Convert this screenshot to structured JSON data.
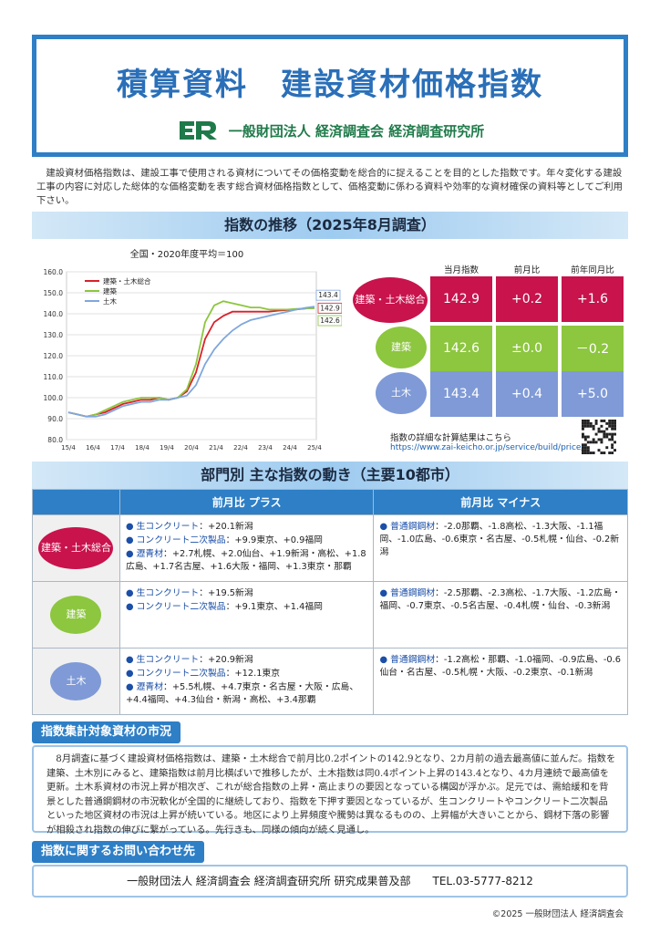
{
  "header": {
    "title": "積算資料　建設資材価格指数",
    "org": "一般財団法人 経済調査会 経済調査研究所"
  },
  "intro": "建設資材価格指数は、建設工事で使用される資材についてその価格変動を総合的に捉えることを目的とした指数です。年々変化する建設工事の内容に対応した総体的な価格変動を表す総合資材価格指数として、価格変動に係わる資料や効率的な資材確保の資料等としてご利用下さい。",
  "section1": {
    "title": "指数の推移（2025年8月調査）"
  },
  "chart_data": {
    "type": "line",
    "subtitle": "全国・2020年度平均＝100",
    "x_ticks": [
      "15/4",
      "16/4",
      "17/4",
      "18/4",
      "19/4",
      "20/4",
      "21/4",
      "22/4",
      "23/4",
      "24/4",
      "25/4"
    ],
    "ylim": [
      80,
      160
    ],
    "y_ticks": [
      "80.0",
      "90.0",
      "100.0",
      "110.0",
      "120.0",
      "130.0",
      "140.0",
      "150.0",
      "160.0"
    ],
    "legend_position": "top-left",
    "grid": true,
    "series": [
      {
        "name": "建築・土木総合",
        "color": "#d8222a",
        "values": [
          93,
          92,
          91,
          92,
          93,
          95,
          97,
          98,
          99,
          99,
          100,
          99,
          100,
          103,
          112,
          128,
          136,
          139,
          141,
          141,
          141,
          141,
          141,
          141.5,
          141.8,
          142.1,
          142.5,
          142.9
        ],
        "end_label": "142.9"
      },
      {
        "name": "建築",
        "color": "#8cc63e",
        "values": [
          93,
          92,
          91,
          92,
          94,
          96,
          98,
          99,
          100,
          100,
          100,
          99,
          100,
          104,
          116,
          136,
          144,
          146,
          145,
          144,
          143,
          143,
          142,
          142,
          142,
          142.3,
          142.5,
          142.6
        ],
        "end_label": "142.6"
      },
      {
        "name": "土木",
        "color": "#7fa7dc",
        "values": [
          93,
          92,
          91,
          91,
          92,
          94,
          96,
          97,
          98,
          98,
          99,
          99,
          100,
          101,
          106,
          116,
          123,
          128,
          132,
          135,
          137,
          138,
          139,
          140,
          141,
          142,
          142.8,
          143.4
        ],
        "end_label": "143.4"
      }
    ]
  },
  "index_table": {
    "headers": [
      "当月指数",
      "前月比",
      "前年同月比"
    ],
    "rows": [
      {
        "label": "建築・土木総合",
        "color": "#c8134d",
        "values": [
          "142.9",
          "+0.2",
          "+1.6"
        ]
      },
      {
        "label": "建築",
        "color": "#8dc63f",
        "values": [
          "142.6",
          "±0.0",
          "－0.2"
        ]
      },
      {
        "label": "土木",
        "color": "#7f9ad6",
        "values": [
          "143.4",
          "+0.4",
          "+5.0"
        ]
      }
    ],
    "detail_note": "指数の詳細な計算結果はこちら",
    "detail_url": "https://www.zai-keicho.or.jp/service/build/price/"
  },
  "section2": {
    "title": "部門別 主な指数の動き（主要10都市）",
    "col_plus": "前月比 プラス",
    "col_minus": "前月比 マイナス",
    "rows": [
      {
        "label": "建築・土木総合",
        "plus": [
          {
            "item": "生コンクリート",
            "text": "：+20.1新潟"
          },
          {
            "item": "コンクリート二次製品",
            "text": "：+9.9東京、+0.9福岡"
          },
          {
            "item": "瀝青材",
            "text": "：+2.7札幌、+2.0仙台、+1.9新潟・高松、+1.8広島、+1.7名古屋、+1.6大阪・福岡、+1.3東京・那覇"
          }
        ],
        "minus": [
          {
            "item": "普通鋼鋼材",
            "text": "：-2.0那覇、-1.8高松、-1.3大阪、-1.1福岡、-1.0広島、-0.6東京・名古屋、-0.5札幌・仙台、-0.2新潟"
          }
        ]
      },
      {
        "label": "建築",
        "plus": [
          {
            "item": "生コンクリート",
            "text": "：+19.5新潟"
          },
          {
            "item": "コンクリート二次製品",
            "text": "：+9.1東京、+1.4福岡"
          }
        ],
        "minus": [
          {
            "item": "普通鋼鋼材",
            "text": "：-2.5那覇、-2.3高松、-1.7大阪、-1.2広島・福岡、-0.7東京、-0.5名古屋、-0.4札幌・仙台、-0.3新潟"
          }
        ]
      },
      {
        "label": "土木",
        "plus": [
          {
            "item": "生コンクリート",
            "text": "：+20.9新潟"
          },
          {
            "item": "コンクリート二次製品",
            "text": "：+12.1東京"
          },
          {
            "item": "瀝青材",
            "text": "：+5.5札幌、+4.7東京・名古屋・大阪・広島、+4.4福岡、+4.3仙台・新潟・高松、+3.4那覇"
          }
        ],
        "minus": [
          {
            "item": "普通鋼鋼材",
            "text": "：-1.2高松・那覇、-1.0福岡、-0.9広島、-0.6仙台・名古屋、-0.5札幌・大阪、-0.2東京、-0.1新潟"
          }
        ]
      }
    ]
  },
  "market": {
    "title": "指数集計対象資材の市況",
    "body": "8月調査に基づく建設資材価格指数は、建築・土木総合で前月比0.2ポイントの142.9となり、2カ月前の過去最高値に並んだ。指数を建築、土木別にみると、建築指数は前月比横ばいで推移したが、土木指数は同0.4ポイント上昇の143.4となり、4カ月連続で最高値を更新。土木系資材の市況上昇が相次ぎ、これが総合指数の上昇・高止まりの要因となっている構図が浮かぶ。足元では、需給緩和を背景とした普通鋼鋼材の市況軟化が全国的に継続しており、指数を下押す要因となっているが、生コンクリートやコンクリート二次製品といった地区資材の市況は上昇が続いている。地区により上昇頻度や騰勢は異なるものの、上昇幅が大きいことから、鋼材下落の影響が相殺され指数の伸びに繋がっている。先行きも、同様の傾向が続く見通し。"
  },
  "contact": {
    "title": "指数に関するお問い合わせ先",
    "text": "一般財団法人 経済調査会 経済調査研究所 研究成果普及部　　TEL.03-5777-8212"
  },
  "copyright": "©2025 一般財団法人 経済調査会"
}
